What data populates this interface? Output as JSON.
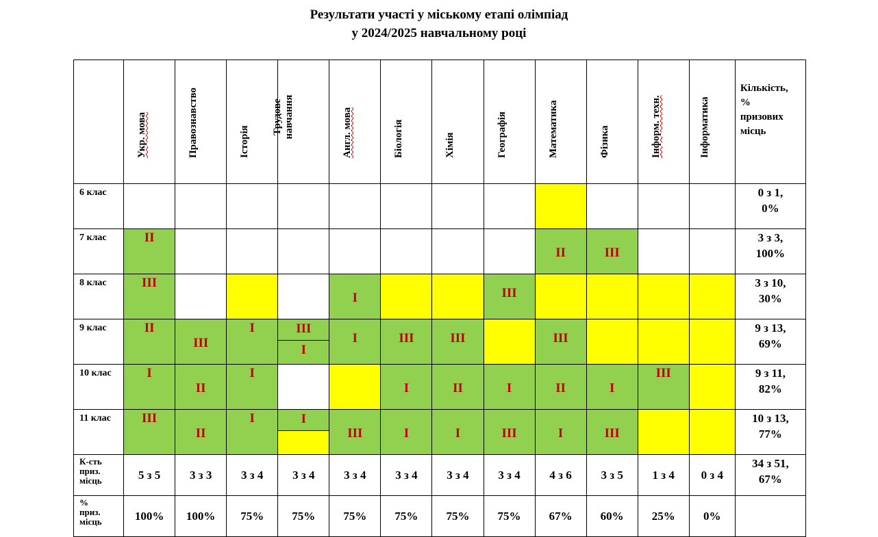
{
  "title": {
    "line1": "Результати участі у міському етапі олімпіад",
    "line2": "у 2024/2025 навчальному році"
  },
  "colors": {
    "green": "#92d050",
    "yellow": "#ffff00",
    "marker": "#c00000"
  },
  "header": {
    "subjects": [
      "Укр. мова",
      "Правознавство",
      "Історія",
      "Трудове навчання",
      "Англ. мова",
      "Біологія",
      "Хімія",
      "Географія",
      "Математика",
      "Фізика",
      "Інформ. техн.",
      "Інформатика"
    ],
    "count_lines": [
      "Кількість,",
      "%",
      "призових",
      "місць"
    ]
  },
  "rows": [
    {
      "label": "6 клас",
      "total": [
        "0 з 1,",
        "0%"
      ],
      "cells": [
        {
          "color": "w",
          "text": ""
        },
        {
          "color": "w",
          "text": ""
        },
        {
          "color": "w",
          "text": ""
        },
        {
          "color": "w",
          "text": ""
        },
        {
          "color": "w",
          "text": ""
        },
        {
          "color": "w",
          "text": ""
        },
        {
          "color": "w",
          "text": ""
        },
        {
          "color": "w",
          "text": ""
        },
        {
          "color": "y",
          "text": ""
        },
        {
          "color": "w",
          "text": ""
        },
        {
          "color": "w",
          "text": ""
        },
        {
          "color": "w",
          "text": ""
        }
      ]
    },
    {
      "label": "7 клас",
      "total": [
        "3 з 3,",
        "100%"
      ],
      "cells": [
        {
          "color": "g",
          "text": "II",
          "pos": "top"
        },
        {
          "color": "w",
          "text": ""
        },
        {
          "color": "w",
          "text": ""
        },
        {
          "color": "w",
          "text": ""
        },
        {
          "color": "w",
          "text": ""
        },
        {
          "color": "w",
          "text": ""
        },
        {
          "color": "w",
          "text": ""
        },
        {
          "color": "w",
          "text": ""
        },
        {
          "color": "g",
          "text": "II",
          "pos": "low"
        },
        {
          "color": "g",
          "text": "III",
          "pos": "low"
        },
        {
          "color": "w",
          "text": ""
        },
        {
          "color": "w",
          "text": ""
        }
      ]
    },
    {
      "label": "8 клас",
      "total": [
        "3 з 10,",
        "30%"
      ],
      "cells": [
        {
          "color": "g",
          "text": "III",
          "pos": "top"
        },
        {
          "color": "w",
          "text": ""
        },
        {
          "color": "y",
          "text": ""
        },
        {
          "color": "w",
          "text": ""
        },
        {
          "color": "g",
          "text": "I",
          "pos": "low"
        },
        {
          "color": "y",
          "text": ""
        },
        {
          "color": "y",
          "text": ""
        },
        {
          "color": "g",
          "text": "III",
          "pos": "mid"
        },
        {
          "color": "y",
          "text": ""
        },
        {
          "color": "y",
          "text": ""
        },
        {
          "color": "y",
          "text": ""
        },
        {
          "color": "y",
          "text": ""
        }
      ]
    },
    {
      "label": "9 клас",
      "total": [
        "9 з 13,",
        "69%"
      ],
      "cells": [
        {
          "color": "g",
          "text": "II",
          "pos": "top"
        },
        {
          "color": "g",
          "text": "III",
          "pos": "low"
        },
        {
          "color": "g",
          "text": "I",
          "pos": "top"
        },
        {
          "split": true,
          "top": {
            "color": "g",
            "text": "III"
          },
          "bottom": {
            "color": "g",
            "text": "I"
          }
        },
        {
          "color": "g",
          "text": "I",
          "pos": "mid"
        },
        {
          "color": "g",
          "text": "III",
          "pos": "mid"
        },
        {
          "color": "g",
          "text": "III",
          "pos": "mid"
        },
        {
          "color": "y",
          "text": ""
        },
        {
          "color": "g",
          "text": "III",
          "pos": "mid"
        },
        {
          "color": "y",
          "text": ""
        },
        {
          "color": "y",
          "text": ""
        },
        {
          "color": "y",
          "text": ""
        }
      ]
    },
    {
      "label": "10 клас",
      "total": [
        "9 з 11,",
        "82%"
      ],
      "cells": [
        {
          "color": "g",
          "text": "I",
          "pos": "top"
        },
        {
          "color": "g",
          "text": "II",
          "pos": "low"
        },
        {
          "color": "g",
          "text": "I",
          "pos": "top"
        },
        {
          "color": "w",
          "text": ""
        },
        {
          "color": "y",
          "text": ""
        },
        {
          "color": "g",
          "text": "I",
          "pos": "low"
        },
        {
          "color": "g",
          "text": "II",
          "pos": "low"
        },
        {
          "color": "g",
          "text": "I",
          "pos": "low"
        },
        {
          "color": "g",
          "text": "II",
          "pos": "low"
        },
        {
          "color": "g",
          "text": "I",
          "pos": "low"
        },
        {
          "color": "g",
          "text": "III",
          "pos": "top"
        },
        {
          "color": "y",
          "text": ""
        }
      ]
    },
    {
      "label": "11 клас",
      "total": [
        "10 з 13,",
        "77%"
      ],
      "cells": [
        {
          "color": "g",
          "text": "III",
          "pos": "top"
        },
        {
          "color": "g",
          "text": "II",
          "pos": "low"
        },
        {
          "color": "g",
          "text": "I",
          "pos": "top"
        },
        {
          "split": true,
          "top": {
            "color": "g",
            "text": "I"
          },
          "bottom": {
            "color": "y",
            "text": ""
          }
        },
        {
          "color": "g",
          "text": "III",
          "pos": "low"
        },
        {
          "color": "g",
          "text": "I",
          "pos": "low"
        },
        {
          "color": "g",
          "text": "I",
          "pos": "low"
        },
        {
          "color": "g",
          "text": "III",
          "pos": "low"
        },
        {
          "color": "g",
          "text": "I",
          "pos": "low"
        },
        {
          "color": "g",
          "text": "III",
          "pos": "low"
        },
        {
          "color": "y",
          "text": ""
        },
        {
          "color": "y",
          "text": ""
        }
      ]
    }
  ],
  "footer": {
    "count_label": [
      "К-сть",
      "приз.",
      "місць"
    ],
    "counts": [
      "5 з 5",
      "3 з 3",
      "3 з 4",
      "3 з 4",
      "3 з 4",
      "3 з 4",
      "3 з 4",
      "3 з 4",
      "4 з 6",
      "3 з 5",
      "1 з 4",
      "0 з 4"
    ],
    "count_total": [
      "34 з 51,",
      "67%"
    ],
    "pct_label": [
      "%",
      "приз.",
      "місць"
    ],
    "percents": [
      "100%",
      "100%",
      "75%",
      "75%",
      "75%",
      "75%",
      "75%",
      "75%",
      "67%",
      "60%",
      "25%",
      "0%"
    ],
    "pct_total": ""
  }
}
